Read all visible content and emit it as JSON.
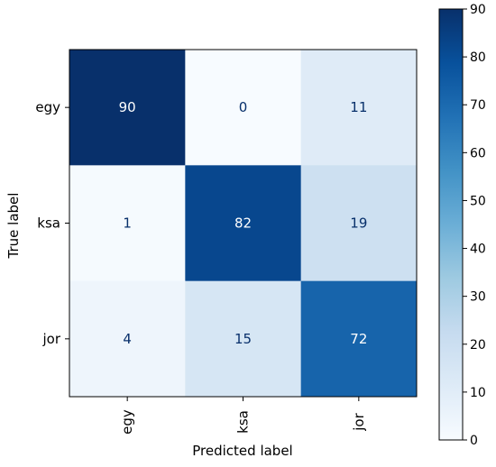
{
  "chart_data": {
    "type": "heatmap",
    "title": "",
    "xlabel": "Predicted label",
    "ylabel": "True label",
    "x_categories": [
      "egy",
      "ksa",
      "jor"
    ],
    "y_categories": [
      "egy",
      "ksa",
      "jor"
    ],
    "values": [
      [
        90,
        0,
        11
      ],
      [
        1,
        82,
        19
      ],
      [
        4,
        15,
        72
      ]
    ],
    "colormap": "Blues",
    "colorbar": {
      "min": 0,
      "max": 90,
      "ticks": [
        0,
        10,
        20,
        30,
        40,
        50,
        60,
        70,
        80,
        90
      ]
    },
    "grid": false,
    "legend": "colorbar-right"
  }
}
